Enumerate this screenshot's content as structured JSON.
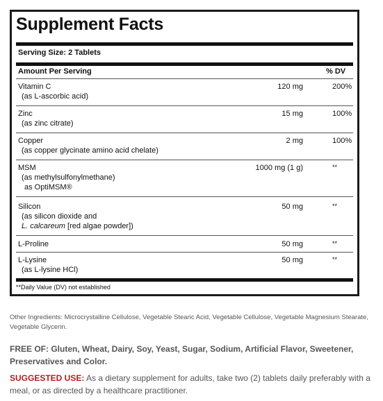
{
  "facts": {
    "title": "Supplement Facts",
    "serving_size": "Serving Size: 2 Tablets",
    "header_amount": "Amount Per Serving",
    "header_dv": "% DV",
    "rows": [
      {
        "name": "Vitamin C",
        "sub1": "(as L-ascorbic acid)",
        "amount": "120 mg",
        "dv": "200%"
      },
      {
        "name": "Zinc",
        "sub1": "(as zinc citrate)",
        "amount": "15 mg",
        "dv": "100%"
      },
      {
        "name": "Copper",
        "sub1": "(as copper glycinate amino acid chelate)",
        "amount": "2 mg",
        "dv": "100%"
      },
      {
        "name": "MSM",
        "sub1": "(as methylsulfonylmethane)",
        "sub2": "as OptiMSM®",
        "amount": "1000 mg (1 g)",
        "dv": "**"
      },
      {
        "name": "Silicon",
        "sub1": "(as silicon dioxide and",
        "sub2_italic": "L. calcareum",
        "sub2_rest": " [red algae powder])",
        "amount": "50 mg",
        "dv": "**"
      },
      {
        "name": "L-Proline",
        "amount": "50 mg",
        "dv": "**"
      },
      {
        "name": "L-Lysine",
        "sub1": "(as L-lysine HCl)",
        "amount": "50 mg",
        "dv": "**"
      }
    ],
    "footnote": "**Daily Value (DV) not established"
  },
  "other_ingredients": "Other Ingredients: Microcrystalline Cellulose, Vegetable Stearic Acid, Vegetable Cellulose, Vegetable Magnesium Stearate, Vegetable Glycerin.",
  "free_of": "FREE OF: Gluten, Wheat, Dairy, Soy, Yeast, Sugar, Sodium, Artificial Flavor, Sweetener, Preservatives and Color.",
  "suggested_use": {
    "label": "SUGGESTED USE:",
    "text": " As a dietary supplement for adults, take two (2) tablets daily preferably with a meal, or as directed by a healthcare practitioner."
  },
  "colors": {
    "border": "#1a1a1a",
    "suggested_label": "#b01e1e",
    "body_text": "#555555"
  }
}
